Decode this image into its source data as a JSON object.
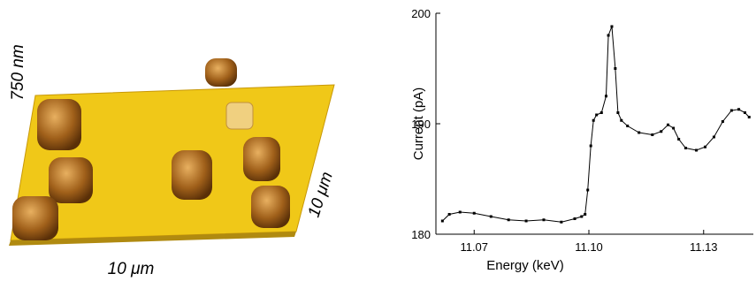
{
  "afm_image": {
    "z_label": "750 nm",
    "x_label": "10 μm",
    "y_label": "10 μm"
  },
  "chart_data": {
    "type": "line",
    "x_label": "Energy (keV)",
    "y_label": "Current (pA)",
    "x": [
      11.0617,
      11.0635,
      11.0663,
      11.07,
      11.0744,
      11.079,
      11.0836,
      11.0882,
      11.0928,
      11.0963,
      11.0981,
      11.099,
      11.0997,
      11.1005,
      11.1012,
      11.102,
      11.1033,
      11.1045,
      11.1051,
      11.106,
      11.1069,
      11.1076,
      11.1085,
      11.1101,
      11.1131,
      11.1166,
      11.1189,
      11.1207,
      11.1221,
      11.1235,
      11.1253,
      11.1281,
      11.1304,
      11.1327,
      11.135,
      11.1373,
      11.1392,
      11.1408,
      11.1419
    ],
    "series": [
      {
        "name": "Current",
        "color": "#000000",
        "values": [
          181.2,
          181.8,
          182.0,
          181.9,
          181.6,
          181.3,
          181.2,
          181.3,
          181.1,
          181.4,
          181.6,
          181.8,
          184,
          188,
          190.3,
          190.8,
          191,
          192.5,
          198,
          198.8,
          195,
          191,
          190.3,
          189.8,
          189.2,
          189,
          189.3,
          189.9,
          189.6,
          188.6,
          187.8,
          187.6,
          187.9,
          188.8,
          190.2,
          191.2,
          191.3,
          191.0,
          190.6
        ]
      }
    ],
    "xlim": [
      11.06,
      11.143
    ],
    "xticks": [
      11.07,
      {
        "value": 11.1,
        "label": "11.10"
      },
      11.13
    ],
    "ylim": [
      180,
      200
    ],
    "yticks": [
      180,
      190,
      200
    ]
  }
}
